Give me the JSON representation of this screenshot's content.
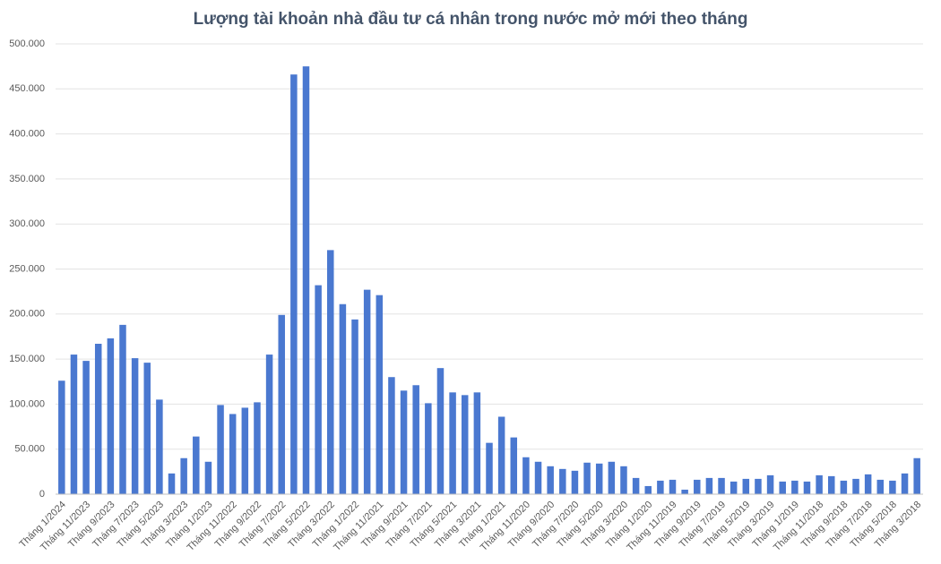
{
  "chart_data": {
    "type": "bar",
    "title": "Lượng tài khoản nhà đầu tư cá nhân trong nước mở mới theo tháng",
    "categories": [
      "Tháng 1/2024",
      null,
      "Tháng 11/2023",
      null,
      "Tháng 9/2023",
      null,
      "Tháng 7/2023",
      null,
      "Tháng 5/2023",
      null,
      "Tháng 3/2023",
      null,
      "Tháng 1/2023",
      null,
      "Tháng 11/2022",
      null,
      "Tháng 9/2022",
      null,
      "Tháng 7/2022",
      null,
      "Tháng 5/2022",
      null,
      "Tháng 3/2022",
      null,
      "Tháng 1/2022",
      null,
      "Tháng 11/2021",
      null,
      "Tháng 9/2021",
      null,
      "Tháng 7/2021",
      null,
      "Tháng 5/2021",
      null,
      "Tháng 3/2021",
      null,
      "Tháng 1/2021",
      null,
      "Tháng 11/2020",
      null,
      "Tháng 9/2020",
      null,
      "Tháng 7/2020",
      null,
      "Tháng 5/2020",
      null,
      "Tháng 3/2020",
      null,
      "Tháng 1/2020",
      null,
      "Tháng 11/2019",
      null,
      "Tháng 9/2019",
      null,
      "Tháng 7/2019",
      null,
      "Tháng 5/2019",
      null,
      "Tháng 3/2019",
      null,
      "Tháng 1/2019",
      null,
      "Tháng 11/2018",
      null,
      "Tháng 9/2018",
      null,
      "Tháng 7/2018",
      null,
      "Tháng 5/2018",
      null,
      "Tháng 3/2018"
    ],
    "values": [
      126000,
      155000,
      148000,
      167000,
      173000,
      188000,
      151000,
      146000,
      105000,
      23000,
      40000,
      64000,
      36000,
      99000,
      89000,
      96000,
      102000,
      155000,
      199000,
      466000,
      475000,
      232000,
      271000,
      211000,
      194000,
      227000,
      221000,
      130000,
      115000,
      121000,
      101000,
      140000,
      113000,
      110000,
      113000,
      57000,
      86000,
      63000,
      41000,
      36000,
      31000,
      28000,
      26000,
      35000,
      34000,
      36000,
      31000,
      18000,
      9000,
      15000,
      16000,
      5000,
      16000,
      18000,
      18000,
      14000,
      17000,
      17000,
      21000,
      14000,
      15000,
      14000,
      21000,
      20000,
      15000,
      17000,
      22000,
      16000,
      15000,
      23000,
      40000
    ],
    "color": "#4a78d0",
    "ylim": [
      0,
      500000
    ],
    "yticks": [
      0,
      {
        "value": 50000,
        "label": "50.000"
      },
      {
        "value": 100000,
        "label": "100.000"
      },
      {
        "value": 150000,
        "label": "150.000"
      },
      {
        "value": 200000,
        "label": "200.000"
      },
      {
        "value": 250000,
        "label": "250.000"
      },
      {
        "value": 300000,
        "label": "300.000"
      },
      {
        "value": 350000,
        "label": "350.000"
      },
      {
        "value": 400000,
        "label": "400.000"
      },
      {
        "value": 450000,
        "label": "450.000"
      },
      {
        "value": 500000,
        "label": "500.000"
      }
    ],
    "grid": true
  }
}
